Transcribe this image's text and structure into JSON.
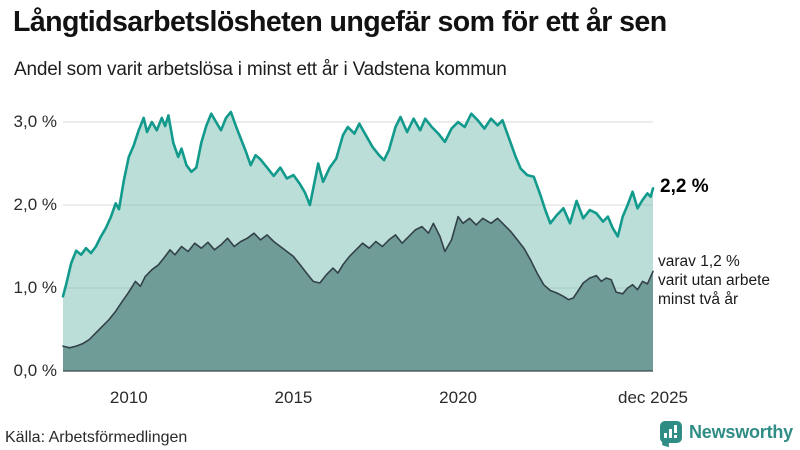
{
  "header": {
    "title": "Långtidsarbetslösheten ungefär som för ett år sen",
    "subtitle": "Andel som varit arbetslösa i minst ett år i Vadstena kommun"
  },
  "annotations": {
    "latest_total": "2,2 %",
    "note_lines": [
      "varav 1,2 %",
      "varit utan arbete",
      "minst två år"
    ]
  },
  "footer": {
    "source": "Källa: Arbetsförmedlingen",
    "brand_name": "Newsworthy",
    "brand_icon": "bar-chart-speech-bubble-icon"
  },
  "colors": {
    "line_1yr": "#129a8c",
    "fill_1yr": "#7cbfb4",
    "line_2yr": "#334149",
    "fill_2yr": "#6f9c97",
    "grid": "#d8d8d8",
    "axis": "#3c4a4a",
    "brand_teal": "#2f8d85"
  },
  "chart_data": {
    "type": "area",
    "title": "Långtidsarbetslösheten ungefär som för ett år sen",
    "subtitle": "Andel som varit arbetslösa i minst ett år i Vadstena kommun",
    "unit": "%",
    "grid": true,
    "legend_position": "none",
    "x_range": [
      2008.0,
      2025.92
    ],
    "ylim": [
      0,
      3.2
    ],
    "y_ticks": [
      {
        "label": "3,0 %",
        "value": 3
      },
      {
        "label": "2,0 %",
        "value": 2
      },
      {
        "label": "1,0 %",
        "value": 1
      },
      {
        "label": "0,0 %",
        "value": 0
      }
    ],
    "x_ticks": [
      {
        "label": "2010",
        "year": 2010
      },
      {
        "label": "2015",
        "year": 2015
      },
      {
        "label": "2020",
        "year": 2020
      },
      {
        "label": "dec 2025",
        "year": 2025.92
      }
    ],
    "latest": {
      "unemployed_min_1yr_pct": 2.2,
      "unemployed_min_2yr_pct": 1.2,
      "period": "dec 2025"
    },
    "series": [
      {
        "name": "arbetslösa minst ett år",
        "line_color": "#129a8c",
        "fill_color": "#7cbfb4",
        "fill_opacity": 0.52,
        "line_width": 2.6,
        "points": [
          [
            2008.0,
            0.9
          ],
          [
            2008.1,
            1.05
          ],
          [
            2008.25,
            1.3
          ],
          [
            2008.4,
            1.45
          ],
          [
            2008.55,
            1.4
          ],
          [
            2008.7,
            1.48
          ],
          [
            2008.85,
            1.42
          ],
          [
            2009.0,
            1.5
          ],
          [
            2009.15,
            1.62
          ],
          [
            2009.3,
            1.72
          ],
          [
            2009.45,
            1.85
          ],
          [
            2009.6,
            2.02
          ],
          [
            2009.7,
            1.95
          ],
          [
            2009.85,
            2.3
          ],
          [
            2010.0,
            2.58
          ],
          [
            2010.15,
            2.72
          ],
          [
            2010.3,
            2.9
          ],
          [
            2010.45,
            3.05
          ],
          [
            2010.55,
            2.88
          ],
          [
            2010.7,
            3.0
          ],
          [
            2010.85,
            2.9
          ],
          [
            2011.0,
            3.05
          ],
          [
            2011.1,
            2.95
          ],
          [
            2011.2,
            3.08
          ],
          [
            2011.35,
            2.75
          ],
          [
            2011.5,
            2.58
          ],
          [
            2011.6,
            2.68
          ],
          [
            2011.75,
            2.48
          ],
          [
            2011.9,
            2.4
          ],
          [
            2012.05,
            2.45
          ],
          [
            2012.2,
            2.75
          ],
          [
            2012.35,
            2.95
          ],
          [
            2012.5,
            3.1
          ],
          [
            2012.65,
            3.0
          ],
          [
            2012.8,
            2.9
          ],
          [
            2012.95,
            3.05
          ],
          [
            2013.1,
            3.12
          ],
          [
            2013.25,
            2.95
          ],
          [
            2013.4,
            2.8
          ],
          [
            2013.55,
            2.65
          ],
          [
            2013.7,
            2.48
          ],
          [
            2013.85,
            2.6
          ],
          [
            2014.0,
            2.55
          ],
          [
            2014.2,
            2.45
          ],
          [
            2014.4,
            2.35
          ],
          [
            2014.6,
            2.45
          ],
          [
            2014.8,
            2.32
          ],
          [
            2015.0,
            2.36
          ],
          [
            2015.2,
            2.25
          ],
          [
            2015.35,
            2.15
          ],
          [
            2015.5,
            2.0
          ],
          [
            2015.65,
            2.3
          ],
          [
            2015.75,
            2.5
          ],
          [
            2015.9,
            2.28
          ],
          [
            2016.1,
            2.45
          ],
          [
            2016.3,
            2.56
          ],
          [
            2016.5,
            2.84
          ],
          [
            2016.65,
            2.94
          ],
          [
            2016.85,
            2.86
          ],
          [
            2017.0,
            2.98
          ],
          [
            2017.2,
            2.84
          ],
          [
            2017.4,
            2.7
          ],
          [
            2017.6,
            2.6
          ],
          [
            2017.75,
            2.54
          ],
          [
            2017.9,
            2.66
          ],
          [
            2018.1,
            2.94
          ],
          [
            2018.25,
            3.06
          ],
          [
            2018.45,
            2.88
          ],
          [
            2018.65,
            3.04
          ],
          [
            2018.85,
            2.9
          ],
          [
            2019.0,
            3.04
          ],
          [
            2019.2,
            2.94
          ],
          [
            2019.4,
            2.86
          ],
          [
            2019.6,
            2.76
          ],
          [
            2019.8,
            2.92
          ],
          [
            2020.0,
            3.0
          ],
          [
            2020.2,
            2.94
          ],
          [
            2020.4,
            3.1
          ],
          [
            2020.6,
            3.02
          ],
          [
            2020.8,
            2.92
          ],
          [
            2021.0,
            3.04
          ],
          [
            2021.2,
            2.96
          ],
          [
            2021.35,
            3.02
          ],
          [
            2021.55,
            2.8
          ],
          [
            2021.75,
            2.58
          ],
          [
            2021.9,
            2.44
          ],
          [
            2022.1,
            2.36
          ],
          [
            2022.3,
            2.34
          ],
          [
            2022.5,
            2.12
          ],
          [
            2022.65,
            1.94
          ],
          [
            2022.8,
            1.78
          ],
          [
            2023.0,
            1.88
          ],
          [
            2023.2,
            1.96
          ],
          [
            2023.4,
            1.78
          ],
          [
            2023.6,
            2.05
          ],
          [
            2023.8,
            1.84
          ],
          [
            2024.0,
            1.94
          ],
          [
            2024.2,
            1.9
          ],
          [
            2024.4,
            1.8
          ],
          [
            2024.55,
            1.86
          ],
          [
            2024.7,
            1.72
          ],
          [
            2024.85,
            1.62
          ],
          [
            2025.0,
            1.86
          ],
          [
            2025.15,
            2.0
          ],
          [
            2025.3,
            2.16
          ],
          [
            2025.45,
            1.96
          ],
          [
            2025.6,
            2.06
          ],
          [
            2025.75,
            2.14
          ],
          [
            2025.85,
            2.1
          ],
          [
            2025.92,
            2.2
          ]
        ]
      },
      {
        "name": "varit utan arbete minst två år",
        "line_color": "#334149",
        "fill_color": "#6f9c97",
        "fill_opacity": 1,
        "line_width": 1.6,
        "points": [
          [
            2008.0,
            0.3
          ],
          [
            2008.2,
            0.28
          ],
          [
            2008.4,
            0.3
          ],
          [
            2008.6,
            0.33
          ],
          [
            2008.8,
            0.38
          ],
          [
            2009.0,
            0.46
          ],
          [
            2009.2,
            0.54
          ],
          [
            2009.4,
            0.62
          ],
          [
            2009.6,
            0.72
          ],
          [
            2009.8,
            0.84
          ],
          [
            2010.0,
            0.95
          ],
          [
            2010.2,
            1.08
          ],
          [
            2010.35,
            1.02
          ],
          [
            2010.5,
            1.14
          ],
          [
            2010.7,
            1.22
          ],
          [
            2010.9,
            1.28
          ],
          [
            2011.1,
            1.38
          ],
          [
            2011.25,
            1.46
          ],
          [
            2011.4,
            1.4
          ],
          [
            2011.6,
            1.5
          ],
          [
            2011.8,
            1.44
          ],
          [
            2012.0,
            1.54
          ],
          [
            2012.2,
            1.48
          ],
          [
            2012.4,
            1.55
          ],
          [
            2012.6,
            1.46
          ],
          [
            2012.8,
            1.52
          ],
          [
            2013.0,
            1.6
          ],
          [
            2013.2,
            1.5
          ],
          [
            2013.4,
            1.56
          ],
          [
            2013.6,
            1.6
          ],
          [
            2013.8,
            1.66
          ],
          [
            2014.0,
            1.58
          ],
          [
            2014.2,
            1.64
          ],
          [
            2014.4,
            1.56
          ],
          [
            2014.6,
            1.5
          ],
          [
            2014.8,
            1.44
          ],
          [
            2015.0,
            1.38
          ],
          [
            2015.2,
            1.28
          ],
          [
            2015.4,
            1.18
          ],
          [
            2015.6,
            1.08
          ],
          [
            2015.8,
            1.06
          ],
          [
            2016.0,
            1.16
          ],
          [
            2016.2,
            1.24
          ],
          [
            2016.35,
            1.18
          ],
          [
            2016.5,
            1.28
          ],
          [
            2016.7,
            1.38
          ],
          [
            2016.9,
            1.46
          ],
          [
            2017.1,
            1.54
          ],
          [
            2017.3,
            1.48
          ],
          [
            2017.5,
            1.56
          ],
          [
            2017.7,
            1.5
          ],
          [
            2017.9,
            1.58
          ],
          [
            2018.1,
            1.64
          ],
          [
            2018.3,
            1.54
          ],
          [
            2018.5,
            1.62
          ],
          [
            2018.7,
            1.7
          ],
          [
            2018.9,
            1.74
          ],
          [
            2019.1,
            1.66
          ],
          [
            2019.25,
            1.78
          ],
          [
            2019.45,
            1.62
          ],
          [
            2019.6,
            1.44
          ],
          [
            2019.8,
            1.58
          ],
          [
            2020.0,
            1.86
          ],
          [
            2020.15,
            1.78
          ],
          [
            2020.35,
            1.84
          ],
          [
            2020.55,
            1.76
          ],
          [
            2020.75,
            1.84
          ],
          [
            2021.0,
            1.78
          ],
          [
            2021.2,
            1.84
          ],
          [
            2021.4,
            1.76
          ],
          [
            2021.6,
            1.68
          ],
          [
            2021.8,
            1.58
          ],
          [
            2022.0,
            1.48
          ],
          [
            2022.2,
            1.34
          ],
          [
            2022.4,
            1.18
          ],
          [
            2022.6,
            1.04
          ],
          [
            2022.8,
            0.97
          ],
          [
            2023.0,
            0.94
          ],
          [
            2023.2,
            0.9
          ],
          [
            2023.35,
            0.86
          ],
          [
            2023.5,
            0.88
          ],
          [
            2023.65,
            0.97
          ],
          [
            2023.8,
            1.06
          ],
          [
            2024.0,
            1.12
          ],
          [
            2024.2,
            1.15
          ],
          [
            2024.35,
            1.08
          ],
          [
            2024.5,
            1.12
          ],
          [
            2024.65,
            1.1
          ],
          [
            2024.8,
            0.95
          ],
          [
            2025.0,
            0.93
          ],
          [
            2025.15,
            1.0
          ],
          [
            2025.3,
            1.04
          ],
          [
            2025.45,
            0.98
          ],
          [
            2025.6,
            1.08
          ],
          [
            2025.75,
            1.05
          ],
          [
            2025.92,
            1.2
          ]
        ]
      }
    ]
  }
}
